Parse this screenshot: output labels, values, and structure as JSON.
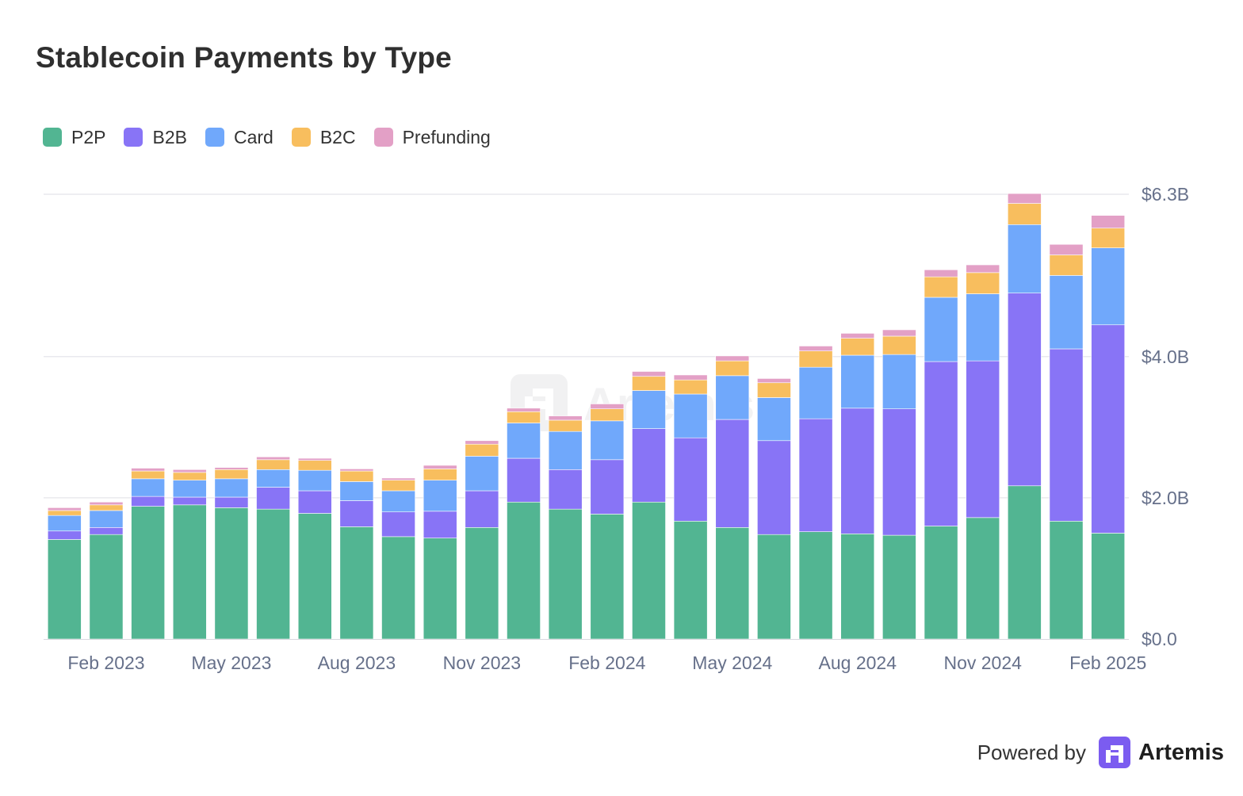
{
  "title": "Stablecoin Payments by Type",
  "colors": {
    "P2P": "#52b592",
    "B2B": "#8874f6",
    "Card": "#70a8fb",
    "B2C": "#f8be5e",
    "Prefunding": "#e3a0c6",
    "grid": "#e9e9ee",
    "axis_text": "#66708a"
  },
  "legend": [
    {
      "name": "P2P",
      "color": "#52b592"
    },
    {
      "name": "B2B",
      "color": "#8874f6"
    },
    {
      "name": "Card",
      "color": "#70a8fb"
    },
    {
      "name": "B2C",
      "color": "#f8be5e"
    },
    {
      "name": "Prefunding",
      "color": "#e3a0c6"
    }
  ],
  "watermark": {
    "text": "Artemis",
    "icon": "artemis-logo-icon"
  },
  "footer": {
    "powered_by": "Powered by",
    "brand": "Artemis",
    "icon": "artemis-logo-icon"
  },
  "chart_data": {
    "type": "bar",
    "stacked": true,
    "y_unit": "$B",
    "ylim": [
      0,
      6.3
    ],
    "yticks": [
      {
        "value": 0,
        "label": "$0.0"
      },
      {
        "value": 2.0,
        "label": "$2.0B"
      },
      {
        "value": 4.0,
        "label": "$4.0B"
      },
      {
        "value": 6.3,
        "label": "$6.3B"
      }
    ],
    "grid": true,
    "y_axis_side": "right",
    "legend_position": "top-left",
    "categories": [
      "Jan 2023",
      "Feb 2023",
      "Mar 2023",
      "Apr 2023",
      "May 2023",
      "Jun 2023",
      "Jul 2023",
      "Aug 2023",
      "Sep 2023",
      "Oct 2023",
      "Nov 2023",
      "Dec 2023",
      "Jan 2024",
      "Feb 2024",
      "Mar 2024",
      "Apr 2024",
      "May 2024",
      "Jun 2024",
      "Jul 2024",
      "Aug 2024",
      "Sep 2024",
      "Oct 2024",
      "Nov 2024",
      "Dec 2024",
      "Jan 2025",
      "Feb 2025"
    ],
    "x_tick_labels": [
      {
        "category": "Feb 2023",
        "label": "Feb 2023"
      },
      {
        "category": "May 2023",
        "label": "May 2023"
      },
      {
        "category": "Aug 2023",
        "label": "Aug 2023"
      },
      {
        "category": "Nov 2023",
        "label": "Nov 2023"
      },
      {
        "category": "Feb 2024",
        "label": "Feb 2024"
      },
      {
        "category": "May 2024",
        "label": "May 2024"
      },
      {
        "category": "Aug 2024",
        "label": "Aug 2024"
      },
      {
        "category": "Nov 2024",
        "label": "Nov 2024"
      },
      {
        "category": "Feb 2025",
        "label": "Feb 2025"
      }
    ],
    "series": [
      {
        "name": "P2P",
        "values": [
          1.41,
          1.48,
          1.88,
          1.9,
          1.86,
          1.84,
          1.78,
          1.59,
          1.45,
          1.43,
          1.58,
          1.94,
          1.84,
          1.77,
          1.94,
          1.67,
          1.58,
          1.48,
          1.52,
          1.49,
          1.47,
          1.6,
          1.72,
          2.17,
          1.67,
          1.5
        ]
      },
      {
        "name": "B2B",
        "values": [
          0.12,
          0.1,
          0.14,
          0.11,
          0.15,
          0.31,
          0.32,
          0.37,
          0.35,
          0.38,
          0.52,
          0.62,
          0.56,
          0.77,
          1.04,
          1.18,
          1.53,
          1.33,
          1.6,
          1.78,
          1.79,
          2.33,
          2.22,
          2.73,
          2.44,
          2.95
        ]
      },
      {
        "name": "Card",
        "values": [
          0.22,
          0.24,
          0.25,
          0.24,
          0.26,
          0.25,
          0.29,
          0.27,
          0.3,
          0.44,
          0.49,
          0.5,
          0.54,
          0.55,
          0.54,
          0.62,
          0.62,
          0.61,
          0.73,
          0.75,
          0.77,
          0.91,
          0.95,
          0.97,
          1.04,
          1.09
        ]
      },
      {
        "name": "B2C",
        "values": [
          0.07,
          0.08,
          0.11,
          0.11,
          0.13,
          0.14,
          0.14,
          0.15,
          0.15,
          0.16,
          0.17,
          0.16,
          0.16,
          0.17,
          0.2,
          0.2,
          0.21,
          0.21,
          0.23,
          0.24,
          0.26,
          0.29,
          0.3,
          0.3,
          0.29,
          0.28
        ]
      },
      {
        "name": "Prefunding",
        "values": [
          0.04,
          0.04,
          0.04,
          0.04,
          0.03,
          0.04,
          0.03,
          0.03,
          0.03,
          0.05,
          0.05,
          0.05,
          0.06,
          0.07,
          0.07,
          0.07,
          0.07,
          0.06,
          0.07,
          0.07,
          0.09,
          0.1,
          0.11,
          0.14,
          0.15,
          0.18
        ]
      }
    ]
  }
}
